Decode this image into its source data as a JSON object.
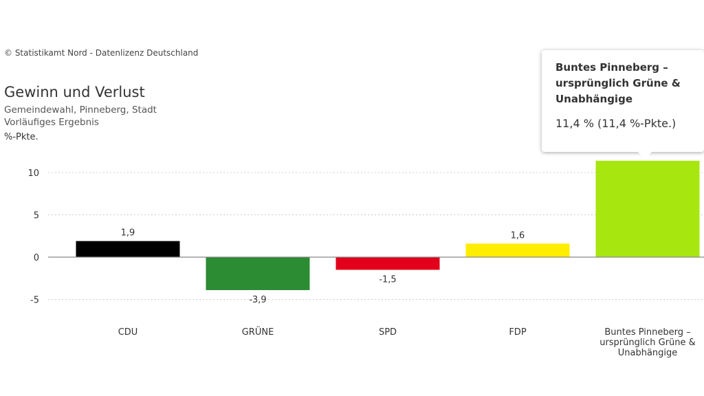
{
  "copyright": "© Statistikamt Nord - Datenlizenz Deutschland",
  "tooltip": {
    "title": "Buntes Pinneberg –\nursprünglich Grüne &\nUnabhängige",
    "value": "11,4 % (11,4 %-Pkte.)"
  },
  "chart_data": {
    "type": "bar",
    "title": "Gewinn und Verlust",
    "subtitle_lines": [
      "Gemeindewahl, Pinneberg, Stadt",
      "Vorläufiges Ergebnis"
    ],
    "ylabel": "%-Pkte.",
    "ylim": [
      -6.5,
      12.5
    ],
    "yticks": [
      10,
      5,
      0,
      -5
    ],
    "ytick_labels": [
      "10",
      "5",
      "0",
      "-5"
    ],
    "grid": true,
    "categories": [
      [
        "CDU"
      ],
      [
        "GRÜNE"
      ],
      [
        "SPD"
      ],
      [
        "FDP"
      ],
      [
        "Buntes Pinneberg –",
        "ursprünglich Grüne &",
        "Unabhängige"
      ]
    ],
    "values": [
      1.9,
      -3.9,
      -1.5,
      1.6,
      11.4
    ],
    "value_labels": [
      "1,9",
      "-3,9",
      "-1,5",
      "1,6",
      ""
    ],
    "colors": [
      "#000000",
      "#2c8c33",
      "#e3001b",
      "#ffed00",
      "#a8e610"
    ]
  }
}
